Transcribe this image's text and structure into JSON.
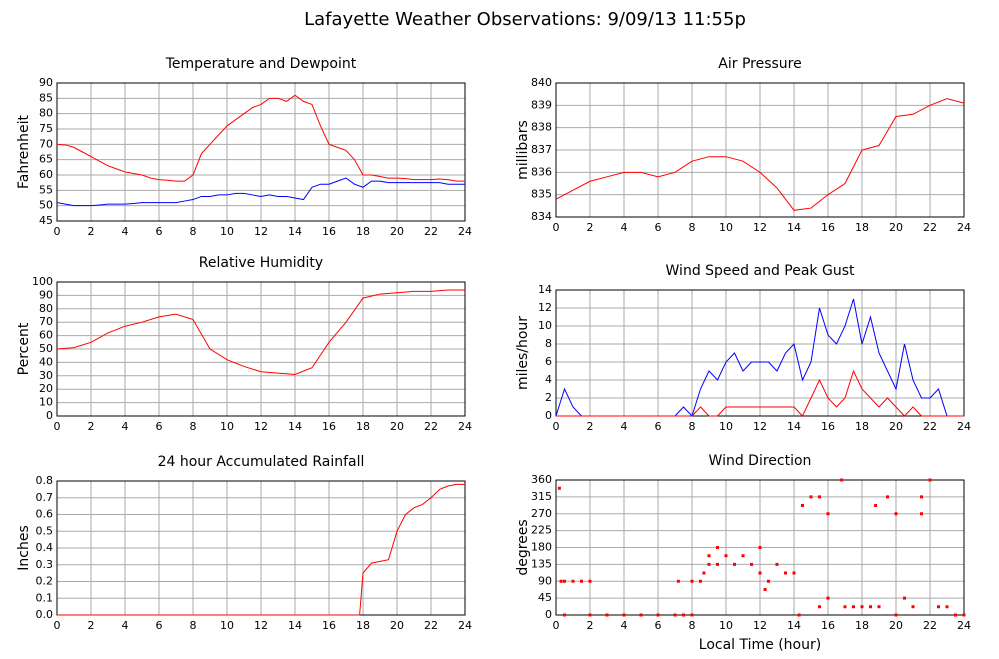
{
  "title": "Lafayette Weather Observations: 9/09/13 11:55p",
  "chart_data": [
    {
      "type": "line",
      "title": "Temperature and Dewpoint",
      "ylabel": "Fahrenheit",
      "x": [
        0,
        0.5,
        1,
        1.5,
        2,
        2.5,
        3,
        3.5,
        4,
        4.5,
        5,
        5.5,
        6,
        6.5,
        7,
        7.5,
        8,
        8.5,
        9,
        9.5,
        10,
        10.5,
        11,
        11.5,
        12,
        12.5,
        13,
        13.5,
        14,
        14.5,
        15,
        15.5,
        16,
        16.5,
        17,
        17.5,
        18,
        18.5,
        19,
        19.5,
        20,
        20.5,
        21,
        21.5,
        22,
        22.5,
        23,
        23.5,
        24
      ],
      "series": [
        {
          "color": "#ff0000",
          "values": [
            70,
            69.8,
            69,
            67.5,
            66,
            64.5,
            63,
            62,
            61,
            60.5,
            60,
            59,
            58.5,
            58.3,
            58,
            58,
            60,
            67,
            70,
            73,
            76,
            78,
            80,
            82,
            83,
            85,
            85,
            84,
            86,
            84,
            83,
            76,
            70,
            69,
            68,
            65,
            60,
            60,
            59.5,
            59,
            59,
            58.8,
            58.5,
            58.5,
            58.5,
            58.7,
            58.5,
            58,
            58
          ]
        },
        {
          "color": "#0000ff",
          "values": [
            51,
            50.5,
            50,
            50,
            50,
            50.2,
            50.5,
            50.5,
            50.5,
            50.7,
            51,
            51,
            51,
            51,
            51,
            51.5,
            52,
            53,
            53,
            53.5,
            53.5,
            54,
            54,
            53.5,
            53,
            53.5,
            53,
            53,
            52.5,
            52,
            56,
            57,
            57,
            58,
            59,
            57,
            56,
            58,
            58,
            57.5,
            57.5,
            57.5,
            57.5,
            57.5,
            57.5,
            57.5,
            57,
            57,
            57
          ]
        }
      ],
      "xlim": [
        0,
        24
      ],
      "xticks": [
        0,
        2,
        4,
        6,
        8,
        10,
        12,
        14,
        16,
        18,
        20,
        22,
        24
      ],
      "ylim": [
        45,
        90
      ],
      "yticks": [
        45,
        50,
        55,
        60,
        65,
        70,
        75,
        80,
        85,
        90
      ],
      "grid": true
    },
    {
      "type": "line",
      "title": "Air Pressure",
      "ylabel": "millibars",
      "x": [
        0,
        1,
        2,
        3,
        4,
        5,
        6,
        7,
        8,
        9,
        10,
        11,
        12,
        13,
        14,
        15,
        16,
        17,
        18,
        19,
        20,
        21,
        22,
        23,
        24
      ],
      "series": [
        {
          "color": "#ff0000",
          "values": [
            834.8,
            835.2,
            835.6,
            835.8,
            836,
            836,
            835.8,
            836,
            836.5,
            836.7,
            836.7,
            836.5,
            836,
            835.3,
            834.3,
            834.4,
            835,
            835.5,
            837,
            837.2,
            838.5,
            838.6,
            839,
            839.3,
            839.1
          ]
        }
      ],
      "xlim": [
        0,
        24
      ],
      "xticks": [
        0,
        2,
        4,
        6,
        8,
        10,
        12,
        14,
        16,
        18,
        20,
        22,
        24
      ],
      "ylim": [
        834,
        840
      ],
      "yticks": [
        834,
        835,
        836,
        837,
        838,
        839,
        840
      ],
      "grid": true
    },
    {
      "type": "line",
      "title": "Relative Humidity",
      "ylabel": "Percent",
      "x": [
        0,
        1,
        2,
        3,
        4,
        5,
        6,
        7,
        8,
        9,
        10,
        11,
        12,
        13,
        14,
        15,
        16,
        17,
        18,
        19,
        20,
        21,
        22,
        23,
        24
      ],
      "series": [
        {
          "color": "#ff0000",
          "values": [
            50,
            51,
            55,
            62,
            67,
            70,
            74,
            76,
            72,
            50,
            42,
            37,
            33,
            32,
            31,
            36,
            55,
            70,
            88,
            91,
            92,
            93,
            93,
            94,
            94
          ]
        }
      ],
      "xlim": [
        0,
        24
      ],
      "xticks": [
        0,
        2,
        4,
        6,
        8,
        10,
        12,
        14,
        16,
        18,
        20,
        22,
        24
      ],
      "ylim": [
        0,
        100
      ],
      "yticks": [
        0,
        10,
        20,
        30,
        40,
        50,
        60,
        70,
        80,
        90,
        100
      ],
      "grid": true
    },
    {
      "type": "line",
      "title": "Wind Speed and Peak Gust",
      "ylabel": "miles/hour",
      "x": [
        0,
        0.5,
        1,
        1.5,
        2,
        2.5,
        3,
        3.5,
        4,
        4.5,
        5,
        5.5,
        6,
        6.5,
        7,
        7.5,
        8,
        8.5,
        9,
        9.5,
        10,
        10.5,
        11,
        11.5,
        12,
        12.5,
        13,
        13.5,
        14,
        14.5,
        15,
        15.5,
        16,
        16.5,
        17,
        17.5,
        18,
        18.5,
        19,
        19.5,
        20,
        20.5,
        21,
        21.5,
        22,
        22.5,
        23,
        23.5,
        24
      ],
      "series": [
        {
          "color": "#0000ff",
          "values": [
            0,
            3,
            1,
            0,
            0,
            0,
            0,
            0,
            0,
            0,
            0,
            0,
            0,
            0,
            0,
            1,
            0,
            3,
            5,
            4,
            6,
            7,
            5,
            6,
            6,
            6,
            5,
            7,
            8,
            4,
            6,
            12,
            9,
            8,
            10,
            13,
            8,
            11,
            7,
            5,
            3,
            8,
            4,
            2,
            2,
            3,
            0,
            0,
            0
          ]
        },
        {
          "color": "#ff0000",
          "values": [
            0,
            0,
            0,
            0,
            0,
            0,
            0,
            0,
            0,
            0,
            0,
            0,
            0,
            0,
            0,
            0,
            0,
            1,
            0,
            0,
            1,
            1,
            1,
            1,
            1,
            1,
            1,
            1,
            1,
            0,
            2,
            4,
            2,
            1,
            2,
            5,
            3,
            2,
            1,
            2,
            1,
            0,
            1,
            0,
            0,
            0,
            0,
            0,
            0
          ]
        }
      ],
      "xlim": [
        0,
        24
      ],
      "xticks": [
        0,
        2,
        4,
        6,
        8,
        10,
        12,
        14,
        16,
        18,
        20,
        22,
        24
      ],
      "ylim": [
        0,
        14
      ],
      "yticks": [
        0,
        2,
        4,
        6,
        8,
        10,
        12,
        14
      ],
      "grid": true
    },
    {
      "type": "line",
      "title": "24 hour Accumulated Rainfall",
      "ylabel": "Inches",
      "x": [
        0,
        17.8,
        18,
        18.5,
        19,
        19.5,
        20,
        20.5,
        21,
        21.5,
        22,
        22.5,
        23,
        23.5,
        24
      ],
      "series": [
        {
          "color": "#ff0000",
          "values": [
            0,
            0,
            0.25,
            0.31,
            0.32,
            0.33,
            0.5,
            0.6,
            0.64,
            0.66,
            0.7,
            0.75,
            0.77,
            0.78,
            0.78
          ]
        }
      ],
      "xlim": [
        0,
        24
      ],
      "xticks": [
        0,
        2,
        4,
        6,
        8,
        10,
        12,
        14,
        16,
        18,
        20,
        22,
        24
      ],
      "ylim": [
        0,
        0.8
      ],
      "yticks": [
        {
          "value": 0,
          "label": "0.0"
        },
        0.1,
        0.2,
        0.3,
        0.4,
        0.5,
        0.6,
        0.7,
        0.8
      ],
      "grid": true
    },
    {
      "type": "scatter",
      "title": "Wind Direction",
      "ylabel": "degrees",
      "xlabel": "Local Time (hour)",
      "x": [
        0.2,
        0.3,
        0.5,
        1,
        1.5,
        2,
        0.5,
        2,
        3,
        4,
        5,
        6,
        7,
        7.5,
        8,
        7.2,
        8,
        8.5,
        8.7,
        9,
        9,
        9.5,
        9.5,
        10,
        10.5,
        11,
        11.5,
        12,
        12,
        12.3,
        12.5,
        13,
        13.5,
        14,
        14.3,
        14.5,
        15,
        15.5,
        16,
        15.5,
        16,
        16.8,
        17,
        17.5,
        18,
        18.5,
        18.8,
        19,
        19.5,
        20,
        20,
        20.5,
        21,
        21.5,
        21.5,
        22,
        22.5,
        23,
        23.5,
        24
      ],
      "series": [
        {
          "color": "#ff0000",
          "values": [
            338,
            90,
            90,
            90,
            90,
            90,
            0,
            0,
            0,
            0,
            0,
            0,
            0,
            0,
            0,
            90,
            90,
            90,
            112,
            135,
            158,
            180,
            135,
            158,
            135,
            158,
            135,
            180,
            112,
            68,
            90,
            135,
            112,
            112,
            0,
            292,
            315,
            315,
            270,
            22,
            45,
            360,
            22,
            22,
            22,
            22,
            292,
            22,
            315,
            270,
            0,
            45,
            22,
            315,
            270,
            360,
            22,
            22,
            0,
            0
          ]
        }
      ],
      "xlim": [
        0,
        24
      ],
      "xticks": [
        0,
        2,
        4,
        6,
        8,
        10,
        12,
        14,
        16,
        18,
        20,
        22,
        24
      ],
      "ylim": [
        0,
        360
      ],
      "yticks": [
        0,
        45,
        90,
        135,
        180,
        225,
        270,
        315,
        360
      ],
      "grid": true
    }
  ]
}
